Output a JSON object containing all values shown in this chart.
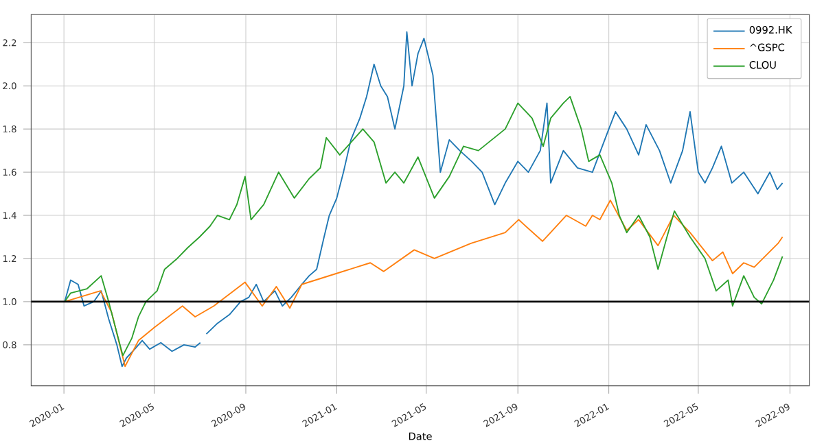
{
  "chart_data": {
    "type": "line",
    "xlabel": "Date",
    "xlim": [
      "2019-11-18",
      "2022-09-27"
    ],
    "ylim": [
      0.61,
      2.33
    ],
    "xticks": [
      "2020-01",
      "2020-05",
      "2020-09",
      "2021-01",
      "2021-05",
      "2021-09",
      "2022-01",
      "2022-05",
      "2022-09"
    ],
    "yticks": [
      {
        "value": 0.8,
        "label": "0.8"
      },
      {
        "value": 1.0,
        "label": "1.0"
      },
      {
        "value": 1.2,
        "label": "1.2"
      },
      {
        "value": 1.4,
        "label": "1.4"
      },
      {
        "value": 1.6,
        "label": "1.6"
      },
      {
        "value": 1.8,
        "label": "1.8"
      },
      {
        "value": 2.0,
        "label": "2.0"
      },
      {
        "value": 2.2,
        "label": "2.2"
      }
    ],
    "grid": true,
    "legend": "top right",
    "ref_lines": [
      {
        "axis": "y",
        "value": 1.0,
        "color": "#000000"
      }
    ],
    "series": [
      {
        "name": "0992.HK",
        "color": "#1f77b4",
        "x": [
          "2020-01-02",
          "2020-01-10",
          "2020-01-20",
          "2020-01-28",
          "2020-02-10",
          "2020-02-20",
          "2020-03-01",
          "2020-03-12",
          "2020-03-19",
          "2020-03-25",
          "2020-04-05",
          "2020-04-15",
          "2020-04-25",
          "2020-05-10",
          "2020-05-25",
          "2020-06-10",
          "2020-06-25",
          "2020-07-02",
          "2020-07-06",
          "2020-07-10",
          "2020-07-25",
          "2020-08-10",
          "2020-08-25",
          "2020-09-05",
          "2020-09-15",
          "2020-09-25",
          "2020-10-10",
          "2020-10-20",
          "2020-11-01",
          "2020-11-15",
          "2020-11-25",
          "2020-12-05",
          "2020-12-15",
          "2020-12-22",
          "2021-01-01",
          "2021-01-10",
          "2021-01-20",
          "2021-02-01",
          "2021-02-10",
          "2021-02-20",
          "2021-03-01",
          "2021-03-10",
          "2021-03-20",
          "2021-04-01",
          "2021-04-05",
          "2021-04-12",
          "2021-04-20",
          "2021-04-28",
          "2021-05-10",
          "2021-05-20",
          "2021-06-01",
          "2021-06-15",
          "2021-07-01",
          "2021-07-15",
          "2021-08-01",
          "2021-08-15",
          "2021-09-01",
          "2021-09-15",
          "2021-10-01",
          "2021-10-10",
          "2021-10-15",
          "2021-11-01",
          "2021-11-20",
          "2021-12-10",
          "2022-01-01",
          "2022-01-10",
          "2022-01-25",
          "2022-02-10",
          "2022-02-20",
          "2022-03-10",
          "2022-03-25",
          "2022-04-10",
          "2022-04-20",
          "2022-05-01",
          "2022-05-10",
          "2022-05-20",
          "2022-06-01",
          "2022-06-15",
          "2022-07-01",
          "2022-07-20",
          "2022-08-05",
          "2022-08-15",
          "2022-08-22"
        ],
        "values": [
          1.0,
          1.1,
          1.08,
          0.98,
          1.0,
          1.05,
          0.92,
          0.8,
          0.7,
          0.74,
          0.78,
          0.82,
          0.78,
          0.81,
          0.77,
          0.8,
          0.79,
          0.81,
          null,
          0.85,
          0.9,
          0.94,
          1.0,
          1.02,
          1.08,
          1.0,
          1.05,
          0.98,
          1.02,
          1.08,
          1.12,
          1.15,
          1.3,
          1.4,
          1.48,
          1.6,
          1.75,
          1.85,
          1.95,
          2.1,
          2.0,
          1.95,
          1.8,
          2.0,
          2.25,
          2.0,
          2.15,
          2.22,
          2.05,
          1.6,
          1.75,
          1.7,
          1.65,
          1.6,
          1.45,
          1.55,
          1.65,
          1.6,
          1.7,
          1.92,
          1.55,
          1.7,
          1.62,
          1.6,
          1.8,
          1.88,
          1.8,
          1.68,
          1.82,
          1.7,
          1.55,
          1.7,
          1.88,
          1.6,
          1.55,
          1.62,
          1.72,
          1.55,
          1.6,
          1.5,
          1.6,
          1.52,
          1.55
        ]
      },
      {
        "name": "^GSPC",
        "color": "#ff7f0e",
        "x": [
          "2020-01-02",
          "2020-02-19",
          "2020-03-05",
          "2020-03-23",
          "2020-04-10",
          "2020-05-01",
          "2020-06-08",
          "2020-06-25",
          "2020-07-20",
          "2020-08-31",
          "2020-09-23",
          "2020-10-12",
          "2020-10-30",
          "2020-11-15",
          "2020-12-31",
          "2021-02-15",
          "2021-03-05",
          "2021-04-15",
          "2021-05-12",
          "2021-06-30",
          "2021-08-15",
          "2021-09-02",
          "2021-10-04",
          "2021-11-05",
          "2021-12-01",
          "2021-12-10",
          "2021-12-20",
          "2022-01-03",
          "2022-01-25",
          "2022-02-10",
          "2022-03-08",
          "2022-03-29",
          "2022-04-20",
          "2022-05-20",
          "2022-06-03",
          "2022-06-16",
          "2022-07-01",
          "2022-07-15",
          "2022-08-16",
          "2022-08-22"
        ],
        "values": [
          1.0,
          1.05,
          0.95,
          0.7,
          0.82,
          0.88,
          0.98,
          0.93,
          0.98,
          1.09,
          0.98,
          1.07,
          0.97,
          1.08,
          1.13,
          1.18,
          1.14,
          1.24,
          1.2,
          1.27,
          1.32,
          1.38,
          1.28,
          1.4,
          1.35,
          1.4,
          1.38,
          1.47,
          1.33,
          1.38,
          1.26,
          1.4,
          1.32,
          1.19,
          1.23,
          1.13,
          1.18,
          1.16,
          1.27,
          1.3
        ]
      },
      {
        "name": "CLOU",
        "color": "#2ca02c",
        "x": [
          "2020-01-02",
          "2020-01-10",
          "2020-02-01",
          "2020-02-20",
          "2020-03-01",
          "2020-03-20",
          "2020-04-01",
          "2020-04-10",
          "2020-04-20",
          "2020-05-05",
          "2020-05-15",
          "2020-06-01",
          "2020-06-15",
          "2020-07-01",
          "2020-07-15",
          "2020-07-25",
          "2020-08-10",
          "2020-08-20",
          "2020-08-31",
          "2020-09-08",
          "2020-09-25",
          "2020-10-15",
          "2020-11-05",
          "2020-11-25",
          "2020-12-10",
          "2020-12-18",
          "2021-01-05",
          "2021-02-05",
          "2021-02-20",
          "2021-03-08",
          "2021-03-20",
          "2021-04-01",
          "2021-04-20",
          "2021-05-12",
          "2021-06-01",
          "2021-06-20",
          "2021-07-10",
          "2021-07-28",
          "2021-08-15",
          "2021-09-01",
          "2021-09-20",
          "2021-10-05",
          "2021-10-15",
          "2021-11-01",
          "2021-11-10",
          "2021-11-25",
          "2021-12-05",
          "2021-12-20",
          "2022-01-05",
          "2022-01-15",
          "2022-01-25",
          "2022-02-10",
          "2022-02-25",
          "2022-03-08",
          "2022-03-20",
          "2022-03-30",
          "2022-04-20",
          "2022-05-10",
          "2022-05-25",
          "2022-06-10",
          "2022-06-16",
          "2022-07-01",
          "2022-07-15",
          "2022-07-25",
          "2022-08-10",
          "2022-08-22"
        ],
        "values": [
          1.0,
          1.04,
          1.06,
          1.12,
          1.0,
          0.75,
          0.83,
          0.93,
          1.0,
          1.05,
          1.15,
          1.2,
          1.25,
          1.3,
          1.35,
          1.4,
          1.38,
          1.45,
          1.58,
          1.38,
          1.45,
          1.6,
          1.48,
          1.57,
          1.62,
          1.76,
          1.68,
          1.8,
          1.74,
          1.55,
          1.6,
          1.55,
          1.67,
          1.48,
          1.58,
          1.72,
          1.7,
          1.75,
          1.8,
          1.92,
          1.85,
          1.72,
          1.85,
          1.92,
          1.95,
          1.8,
          1.65,
          1.68,
          1.55,
          1.4,
          1.32,
          1.4,
          1.3,
          1.15,
          1.3,
          1.42,
          1.3,
          1.2,
          1.05,
          1.1,
          0.98,
          1.12,
          1.02,
          0.99,
          1.1,
          1.21
        ]
      }
    ]
  }
}
